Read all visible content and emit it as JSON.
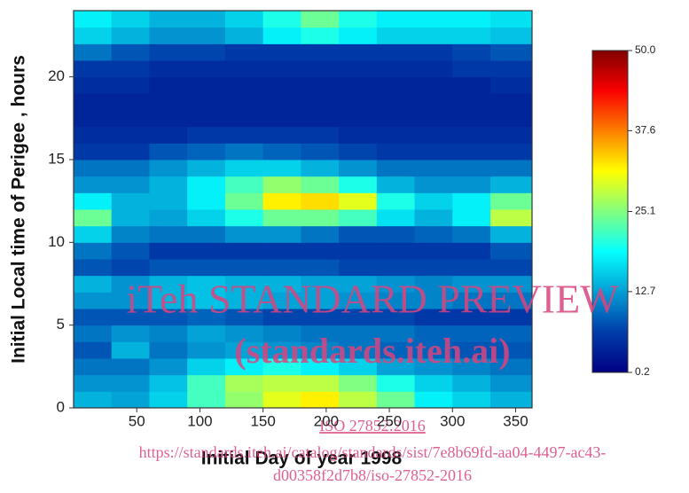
{
  "chart_data": {
    "type": "heatmap",
    "xlabel": "Initial Day of year 1998",
    "ylabel": "Initial Local time of Perigee , hours",
    "xbins": [
      0,
      30,
      60,
      90,
      120,
      150,
      180,
      210,
      240,
      270,
      300,
      330,
      363
    ],
    "ybins": [
      0,
      1,
      2,
      3,
      4,
      5,
      6,
      7,
      8,
      9,
      10,
      11,
      12,
      13,
      14,
      15,
      16,
      17,
      18,
      19,
      20,
      21,
      22,
      23,
      24
    ],
    "z": [
      [
        14,
        13,
        16,
        22,
        26,
        30,
        32,
        28,
        24,
        18,
        16,
        14
      ],
      [
        12,
        12,
        15,
        22,
        27,
        28,
        28,
        25,
        20,
        16,
        14,
        12
      ],
      [
        10,
        10,
        12,
        16,
        18,
        20,
        18,
        16,
        13,
        12,
        11,
        10
      ],
      [
        8,
        14,
        10,
        12,
        13,
        12,
        11,
        10,
        9,
        9,
        8,
        8
      ],
      [
        10,
        12,
        11,
        13,
        12,
        11,
        10,
        10,
        10,
        9,
        9,
        9
      ],
      [
        8,
        8,
        8,
        9,
        8,
        7,
        7,
        7,
        7,
        6,
        6,
        6
      ],
      [
        12,
        12,
        14,
        15,
        14,
        13,
        13,
        12,
        11,
        11,
        10,
        10
      ],
      [
        14,
        12,
        14,
        15,
        14,
        14,
        13,
        13,
        12,
        11,
        12,
        12
      ],
      [
        8,
        7,
        8,
        8,
        8,
        8,
        8,
        7,
        7,
        7,
        7,
        7
      ],
      [
        10,
        8,
        6,
        6,
        6,
        6,
        6,
        6,
        6,
        6,
        6,
        8
      ],
      [
        16,
        11,
        10,
        10,
        12,
        12,
        10,
        8,
        8,
        9,
        10,
        14
      ],
      [
        24,
        14,
        13,
        16,
        20,
        24,
        24,
        22,
        17,
        14,
        18,
        28
      ],
      [
        18,
        14,
        14,
        18,
        24,
        32,
        33,
        30,
        20,
        16,
        18,
        24
      ],
      [
        12,
        12,
        14,
        18,
        22,
        26,
        24,
        20,
        14,
        12,
        12,
        14
      ],
      [
        10,
        10,
        12,
        14,
        16,
        16,
        14,
        12,
        10,
        10,
        10,
        10
      ],
      [
        6,
        6,
        8,
        9,
        10,
        9,
        8,
        7,
        6,
        6,
        6,
        6
      ],
      [
        5,
        5,
        5,
        6,
        6,
        6,
        6,
        5,
        5,
        5,
        5,
        5
      ],
      [
        4,
        4,
        4,
        4,
        4,
        4,
        4,
        4,
        4,
        4,
        4,
        4
      ],
      [
        4,
        4,
        4,
        4,
        4,
        4,
        4,
        4,
        4,
        4,
        4,
        4
      ],
      [
        5,
        5,
        4,
        4,
        4,
        4,
        4,
        4,
        4,
        4,
        4,
        5
      ],
      [
        6,
        6,
        5,
        5,
        5,
        5,
        5,
        5,
        5,
        5,
        6,
        6
      ],
      [
        10,
        8,
        7,
        7,
        6,
        6,
        6,
        6,
        6,
        6,
        7,
        8
      ],
      [
        16,
        14,
        12,
        12,
        14,
        18,
        20,
        18,
        16,
        16,
        16,
        15
      ],
      [
        18,
        16,
        14,
        14,
        16,
        20,
        24,
        20,
        18,
        18,
        18,
        17
      ]
    ],
    "xlim": [
      0,
      363
    ],
    "xticks": [
      50,
      100,
      150,
      200,
      250,
      300,
      350
    ],
    "ylim": [
      0,
      24
    ],
    "yticks": [
      0,
      5,
      10,
      15,
      20
    ],
    "colormap": "jet",
    "clim": [
      0.2,
      50
    ],
    "cticks": [
      0.2,
      12.7,
      25.1,
      37.6,
      {
        "value": 50,
        "label": "50.0"
      }
    ]
  },
  "watermark": {
    "line1": "iTeh STANDARD PREVIEW",
    "line2": "(standards.iteh.ai)",
    "iso": "ISO 27852:2016",
    "url1": "https://standards.iteh.ai/catalog/standards/sist/7e8b69fd-aa04-4497-ac43-",
    "url2": "d00358f2d7b8/iso-27852-2016"
  }
}
